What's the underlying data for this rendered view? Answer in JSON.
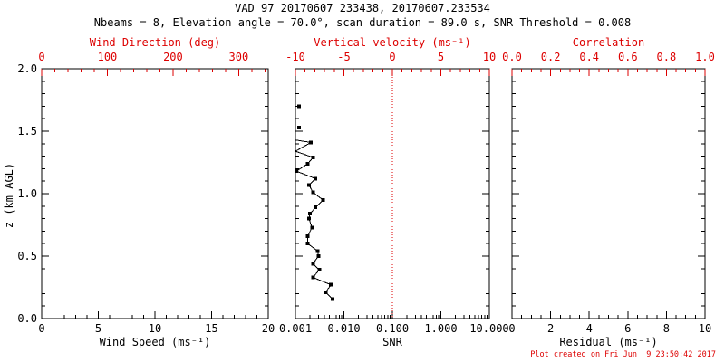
{
  "colors": {
    "axis_red": "#dd0000",
    "data_black": "#000000",
    "background": "#ffffff"
  },
  "header": {
    "title": "VAD_97_20170607_233438, 20170607.233534",
    "subtitle": "Nbeams = 8, Elevation angle = 70.0°, scan duration = 89.0 s, SNR Threshold = 0.008"
  },
  "footer": {
    "created": "Plot created on Fri Jun  9 23:50:42 2017"
  },
  "chart_data": [
    {
      "panel": "wind",
      "type": "scatter",
      "axes": {
        "bottom": {
          "label": "Wind Speed (ms⁻¹)",
          "range": [
            0,
            20
          ],
          "ticks": [
            {
              "v": 0,
              "t": "0"
            },
            {
              "v": 5,
              "t": "5"
            },
            {
              "v": 10,
              "t": "10"
            },
            {
              "v": 15,
              "t": "15"
            },
            {
              "v": 20,
              "t": "20"
            }
          ],
          "minor_step": 1,
          "color": "black"
        },
        "top": {
          "label": "Wind Direction (deg)",
          "range": [
            0,
            345
          ],
          "ticks": [
            {
              "v": 0,
              "t": "0"
            },
            {
              "v": 100,
              "t": "100"
            },
            {
              "v": 200,
              "t": "200"
            },
            {
              "v": 300,
              "t": "300"
            }
          ],
          "minor_step": 20,
          "color": "red"
        },
        "left": {
          "label": "z (km AGL)",
          "range": [
            0,
            2
          ],
          "ticks": [
            {
              "v": 2.0,
              "t": "2.0"
            },
            {
              "v": 1.5,
              "t": "1.5"
            },
            {
              "v": 1.0,
              "t": "1.0"
            },
            {
              "v": 0.5,
              "t": "0.5"
            },
            {
              "v": 0.0,
              "t": "0.0"
            }
          ],
          "minor_step": 0.1,
          "show_labels": true
        }
      },
      "series": []
    },
    {
      "panel": "snr",
      "type": "line-scatter",
      "axes": {
        "bottom": {
          "label": "SNR",
          "scale": "log",
          "range": [
            0.001,
            10
          ],
          "ticks": [
            {
              "v": 0.001,
              "t": "0.001"
            },
            {
              "v": 0.01,
              "t": "0.010"
            },
            {
              "v": 0.1,
              "t": "0.100"
            },
            {
              "v": 1,
              "t": "1.000"
            },
            {
              "v": 10,
              "t": "10.000"
            }
          ],
          "color": "black"
        },
        "top": {
          "label": "Vertical velocity (ms⁻¹)",
          "range": [
            -10,
            10
          ],
          "ticks": [
            {
              "v": -10,
              "t": "-10"
            },
            {
              "v": -5,
              "t": "-5"
            },
            {
              "v": 0,
              "t": "0"
            },
            {
              "v": 5,
              "t": "5"
            },
            {
              "v": 10,
              "t": "10"
            }
          ],
          "minor_step": 1,
          "color": "red"
        },
        "left": {
          "range": [
            0,
            2
          ],
          "minor_step": 0.1,
          "show_labels": false
        }
      },
      "ref_line": {
        "snr": 0.1,
        "color": "#dd0000",
        "style": "dotted",
        "note": "vertical velocity = 0 / SNR = 0.100 reference"
      },
      "series": [
        {
          "name": "snr-profile",
          "color": "#000000",
          "marker": "square",
          "isolated_points": [
            {
              "snr": 0.0012,
              "z": 1.7
            },
            {
              "snr": 0.0012,
              "z": 1.53
            }
          ],
          "points": [
            {
              "snr": 0.001,
              "z": 1.43,
              "m": 0
            },
            {
              "snr": 0.0021,
              "z": 1.41,
              "m": 1
            },
            {
              "snr": 0.001,
              "z": 1.34,
              "m": 0
            },
            {
              "snr": 0.0023,
              "z": 1.29,
              "m": 1
            },
            {
              "snr": 0.0018,
              "z": 1.24,
              "m": 1
            },
            {
              "snr": 0.00105,
              "z": 1.18,
              "m": 1
            },
            {
              "snr": 0.0026,
              "z": 1.12,
              "m": 1
            },
            {
              "snr": 0.0019,
              "z": 1.07,
              "m": 1
            },
            {
              "snr": 0.0023,
              "z": 1.01,
              "m": 1
            },
            {
              "snr": 0.0037,
              "z": 0.95,
              "m": 1
            },
            {
              "snr": 0.0026,
              "z": 0.89,
              "m": 1
            },
            {
              "snr": 0.002,
              "z": 0.84,
              "m": 1
            },
            {
              "snr": 0.0019,
              "z": 0.8,
              "m": 1
            },
            {
              "snr": 0.0022,
              "z": 0.73,
              "m": 1
            },
            {
              "snr": 0.0018,
              "z": 0.66,
              "m": 1
            },
            {
              "snr": 0.0018,
              "z": 0.6,
              "m": 1
            },
            {
              "snr": 0.0029,
              "z": 0.54,
              "m": 1
            },
            {
              "snr": 0.003,
              "z": 0.5,
              "m": 1
            },
            {
              "snr": 0.0023,
              "z": 0.44,
              "m": 1
            },
            {
              "snr": 0.0031,
              "z": 0.39,
              "m": 1
            },
            {
              "snr": 0.0023,
              "z": 0.33,
              "m": 1
            },
            {
              "snr": 0.0054,
              "z": 0.27,
              "m": 1
            },
            {
              "snr": 0.0042,
              "z": 0.21,
              "m": 1
            },
            {
              "snr": 0.0059,
              "z": 0.155,
              "m": 1
            }
          ]
        }
      ]
    },
    {
      "panel": "residual",
      "type": "scatter",
      "axes": {
        "bottom": {
          "label": "Residual (ms⁻¹)",
          "range": [
            0,
            10
          ],
          "ticks": [
            {
              "v": 0,
              "t": "0"
            },
            {
              "v": 2,
              "t": "2"
            },
            {
              "v": 4,
              "t": "4"
            },
            {
              "v": 6,
              "t": "6"
            },
            {
              "v": 8,
              "t": "8"
            },
            {
              "v": 10,
              "t": "10"
            }
          ],
          "minor_step": 0.5,
          "color": "black"
        },
        "top": {
          "label": "Correlation",
          "range": [
            0,
            1
          ],
          "ticks": [
            {
              "v": 0.0,
              "t": "0.0"
            },
            {
              "v": 0.2,
              "t": "0.2"
            },
            {
              "v": 0.4,
              "t": "0.4"
            },
            {
              "v": 0.6,
              "t": "0.6"
            },
            {
              "v": 0.8,
              "t": "0.8"
            },
            {
              "v": 1.0,
              "t": "1.0"
            }
          ],
          "minor_step": 0.05,
          "color": "red"
        },
        "left": {
          "range": [
            0,
            2
          ],
          "minor_step": 0.1,
          "show_labels": false
        }
      },
      "series": []
    }
  ]
}
